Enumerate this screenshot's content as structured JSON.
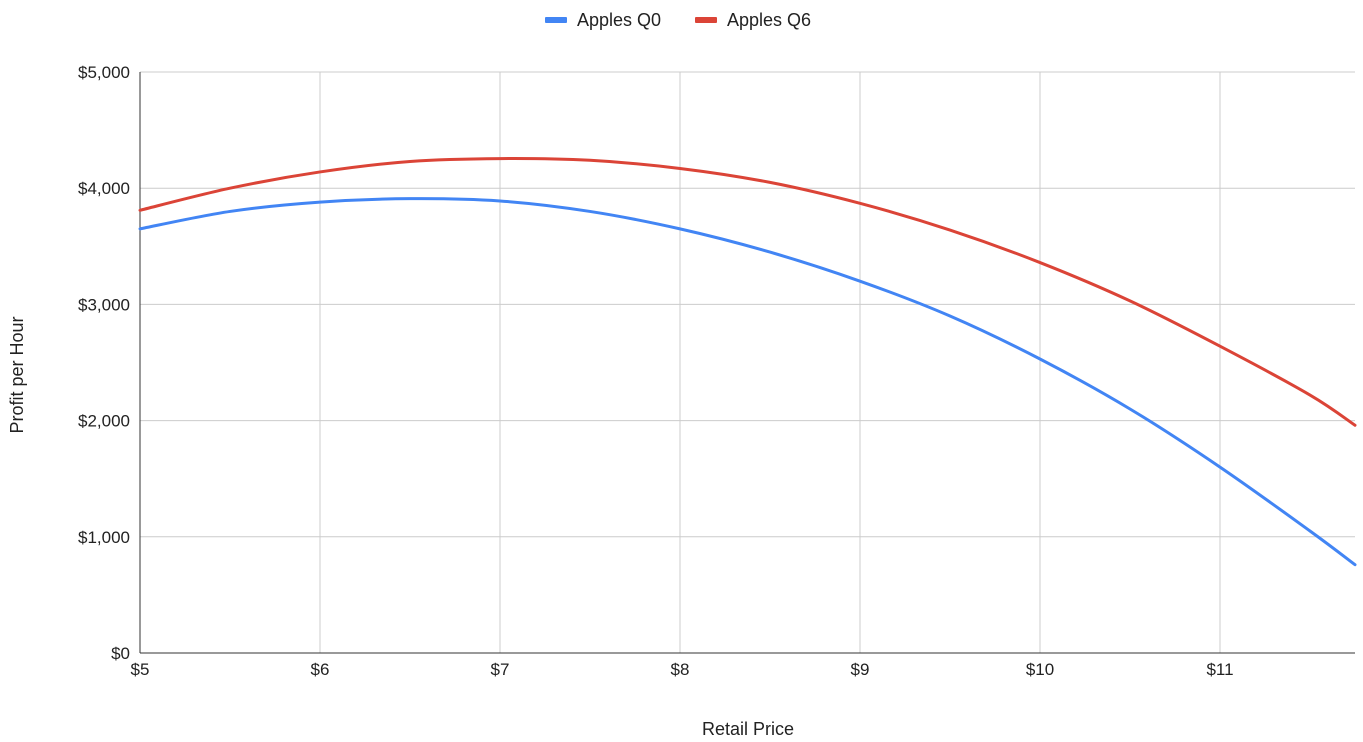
{
  "chart_data": {
    "type": "line",
    "title": "",
    "xlabel": "Retail Price",
    "ylabel": "Profit per Hour",
    "xlim": [
      5,
      11.75
    ],
    "ylim": [
      0,
      5000
    ],
    "x_ticks": [
      5,
      6,
      7,
      8,
      9,
      10,
      11
    ],
    "x_tick_labels": [
      "$5",
      "$6",
      "$7",
      "$8",
      "$9",
      "$10",
      "$11"
    ],
    "y_ticks": [
      0,
      1000,
      2000,
      3000,
      4000,
      5000
    ],
    "y_tick_labels": [
      "$0",
      "$1,000",
      "$2,000",
      "$3,000",
      "$4,000",
      "$5,000"
    ],
    "grid": true,
    "legend_position": "top-center",
    "x": [
      5,
      5.5,
      6,
      6.5,
      7,
      7.5,
      8,
      8.5,
      9,
      9.5,
      10,
      10.5,
      11,
      11.5,
      11.75
    ],
    "series": [
      {
        "name": "Apples Q0",
        "color": "#4285f4",
        "values": [
          3650,
          3800,
          3880,
          3910,
          3890,
          3800,
          3650,
          3450,
          3200,
          2900,
          2530,
          2100,
          1600,
          1050,
          760
        ]
      },
      {
        "name": "Apples Q6",
        "color": "#db4437",
        "values": [
          3810,
          4000,
          4140,
          4230,
          4255,
          4240,
          4170,
          4050,
          3870,
          3640,
          3360,
          3030,
          2640,
          2220,
          1960
        ]
      }
    ]
  }
}
